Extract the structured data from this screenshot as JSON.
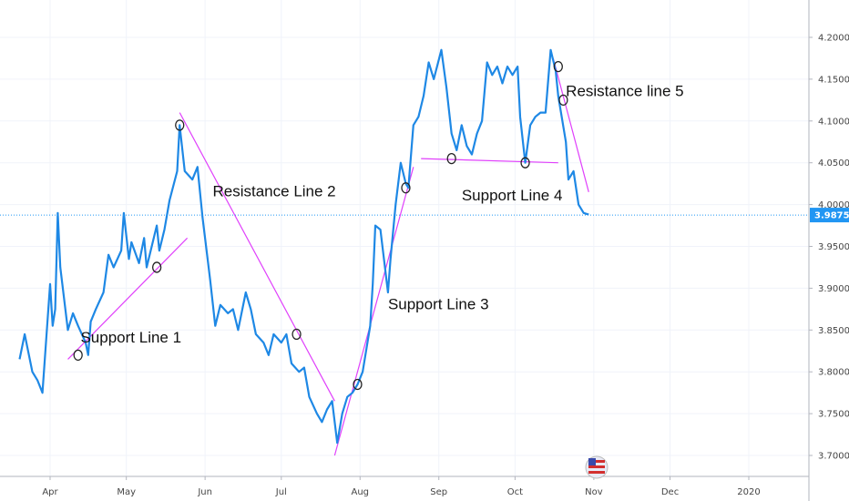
{
  "chart_data": {
    "type": "line",
    "xlim": [
      "2019-03-20",
      "2019-12-31"
    ],
    "ylim": [
      3.68,
      4.23
    ],
    "grid": true,
    "x_ticks": [
      {
        "label": "Apr",
        "date": "2019-04-01"
      },
      {
        "label": "May",
        "date": "2019-05-01"
      },
      {
        "label": "Jun",
        "date": "2019-06-01"
      },
      {
        "label": "Jul",
        "date": "2019-07-01"
      },
      {
        "label": "Aug",
        "date": "2019-08-01"
      },
      {
        "label": "Sep",
        "date": "2019-09-01"
      },
      {
        "label": "Oct",
        "date": "2019-10-01"
      },
      {
        "label": "Nov",
        "date": "2019-11-01"
      },
      {
        "label": "Dec",
        "date": "2019-12-01"
      },
      {
        "label": "2020",
        "date": "2020-01-01"
      }
    ],
    "y_ticks": [
      "3.7000",
      "3.7500",
      "3.8000",
      "3.8500",
      "3.9000",
      "3.9500",
      "4.0000",
      "4.0500",
      "4.1000",
      "4.1500",
      "4.2000"
    ],
    "current_price": {
      "label": "3.9875",
      "value": 3.9875,
      "color": "#2196f3"
    },
    "series": [
      {
        "color": "#1e88e5",
        "points": [
          [
            "2019-03-20",
            3.815
          ],
          [
            "2019-03-22",
            3.845
          ],
          [
            "2019-03-25",
            3.8
          ],
          [
            "2019-03-27",
            3.79
          ],
          [
            "2019-03-29",
            3.775
          ],
          [
            "2019-04-01",
            3.905
          ],
          [
            "2019-04-02",
            3.855
          ],
          [
            "2019-04-03",
            3.875
          ],
          [
            "2019-04-04",
            3.99
          ],
          [
            "2019-04-05",
            3.925
          ],
          [
            "2019-04-08",
            3.85
          ],
          [
            "2019-04-10",
            3.87
          ],
          [
            "2019-04-12",
            3.855
          ],
          [
            "2019-04-15",
            3.835
          ],
          [
            "2019-04-16",
            3.82
          ],
          [
            "2019-04-17",
            3.86
          ],
          [
            "2019-04-19",
            3.875
          ],
          [
            "2019-04-22",
            3.895
          ],
          [
            "2019-04-24",
            3.94
          ],
          [
            "2019-04-26",
            3.925
          ],
          [
            "2019-04-29",
            3.945
          ],
          [
            "2019-04-30",
            3.99
          ],
          [
            "2019-05-02",
            3.935
          ],
          [
            "2019-05-03",
            3.955
          ],
          [
            "2019-05-06",
            3.93
          ],
          [
            "2019-05-08",
            3.96
          ],
          [
            "2019-05-09",
            3.925
          ],
          [
            "2019-05-13",
            3.975
          ],
          [
            "2019-05-14",
            3.945
          ],
          [
            "2019-05-16",
            3.97
          ],
          [
            "2019-05-18",
            4.005
          ],
          [
            "2019-05-21",
            4.04
          ],
          [
            "2019-05-22",
            4.095
          ],
          [
            "2019-05-24",
            4.04
          ],
          [
            "2019-05-27",
            4.03
          ],
          [
            "2019-05-29",
            4.045
          ],
          [
            "2019-05-31",
            3.985
          ],
          [
            "2019-06-03",
            3.91
          ],
          [
            "2019-06-05",
            3.855
          ],
          [
            "2019-06-07",
            3.88
          ],
          [
            "2019-06-10",
            3.87
          ],
          [
            "2019-06-12",
            3.875
          ],
          [
            "2019-06-14",
            3.85
          ],
          [
            "2019-06-17",
            3.895
          ],
          [
            "2019-06-19",
            3.875
          ],
          [
            "2019-06-21",
            3.845
          ],
          [
            "2019-06-24",
            3.835
          ],
          [
            "2019-06-26",
            3.82
          ],
          [
            "2019-06-28",
            3.845
          ],
          [
            "2019-07-01",
            3.835
          ],
          [
            "2019-07-03",
            3.845
          ],
          [
            "2019-07-05",
            3.81
          ],
          [
            "2019-07-08",
            3.8
          ],
          [
            "2019-07-10",
            3.805
          ],
          [
            "2019-07-12",
            3.77
          ],
          [
            "2019-07-15",
            3.75
          ],
          [
            "2019-07-17",
            3.74
          ],
          [
            "2019-07-19",
            3.755
          ],
          [
            "2019-07-21",
            3.765
          ],
          [
            "2019-07-23",
            3.715
          ],
          [
            "2019-07-25",
            3.75
          ],
          [
            "2019-07-27",
            3.77
          ],
          [
            "2019-07-29",
            3.775
          ],
          [
            "2019-07-31",
            3.785
          ],
          [
            "2019-08-02",
            3.8
          ],
          [
            "2019-08-05",
            3.855
          ],
          [
            "2019-08-06",
            3.905
          ],
          [
            "2019-08-07",
            3.975
          ],
          [
            "2019-08-09",
            3.97
          ],
          [
            "2019-08-12",
            3.895
          ],
          [
            "2019-08-13",
            3.935
          ],
          [
            "2019-08-15",
            4.0
          ],
          [
            "2019-08-17",
            4.05
          ],
          [
            "2019-08-19",
            4.025
          ],
          [
            "2019-08-20",
            4.02
          ],
          [
            "2019-08-22",
            4.095
          ],
          [
            "2019-08-24",
            4.105
          ],
          [
            "2019-08-26",
            4.13
          ],
          [
            "2019-08-28",
            4.17
          ],
          [
            "2019-08-30",
            4.15
          ],
          [
            "2019-09-02",
            4.185
          ],
          [
            "2019-09-04",
            4.14
          ],
          [
            "2019-09-06",
            4.085
          ],
          [
            "2019-09-08",
            4.065
          ],
          [
            "2019-09-10",
            4.095
          ],
          [
            "2019-09-12",
            4.07
          ],
          [
            "2019-09-14",
            4.06
          ],
          [
            "2019-09-16",
            4.085
          ],
          [
            "2019-09-18",
            4.1
          ],
          [
            "2019-09-20",
            4.17
          ],
          [
            "2019-09-22",
            4.155
          ],
          [
            "2019-09-24",
            4.165
          ],
          [
            "2019-09-26",
            4.145
          ],
          [
            "2019-09-28",
            4.165
          ],
          [
            "2019-09-30",
            4.155
          ],
          [
            "2019-10-02",
            4.165
          ],
          [
            "2019-10-03",
            4.105
          ],
          [
            "2019-10-05",
            4.05
          ],
          [
            "2019-10-07",
            4.095
          ],
          [
            "2019-10-09",
            4.105
          ],
          [
            "2019-10-11",
            4.11
          ],
          [
            "2019-10-13",
            4.11
          ],
          [
            "2019-10-15",
            4.185
          ],
          [
            "2019-10-17",
            4.16
          ],
          [
            "2019-10-18",
            4.13
          ],
          [
            "2019-10-21",
            4.075
          ],
          [
            "2019-10-22",
            4.03
          ],
          [
            "2019-10-24",
            4.04
          ],
          [
            "2019-10-26",
            4.0
          ],
          [
            "2019-10-28",
            3.99
          ],
          [
            "2019-10-30",
            3.988
          ]
        ]
      }
    ],
    "trendlines": [
      {
        "name": "Support Line 1",
        "color": "#e040fb",
        "from": [
          "2019-04-08",
          3.815
        ],
        "to": [
          "2019-05-25",
          3.96
        ]
      },
      {
        "name": "Resistance Line 2",
        "color": "#e040fb",
        "from": [
          "2019-05-22",
          4.11
        ],
        "to": [
          "2019-07-22",
          3.765
        ]
      },
      {
        "name": "Support Line 3",
        "color": "#e040fb",
        "from": [
          "2019-07-22",
          3.7
        ],
        "to": [
          "2019-08-22",
          4.045
        ]
      },
      {
        "name": "Support Line 4",
        "color": "#e040fb",
        "from": [
          "2019-08-25",
          4.055
        ],
        "to": [
          "2019-10-18",
          4.05
        ]
      },
      {
        "name": "Resistance line 5",
        "color": "#e040fb",
        "from": [
          "2019-10-16",
          4.175
        ],
        "to": [
          "2019-10-30",
          4.015
        ]
      }
    ],
    "markers": [
      [
        "2019-04-12",
        3.82
      ],
      [
        "2019-05-13",
        3.925
      ],
      [
        "2019-05-22",
        4.095
      ],
      [
        "2019-07-07",
        3.845
      ],
      [
        "2019-07-31",
        3.785
      ],
      [
        "2019-08-19",
        4.02
      ],
      [
        "2019-09-06",
        4.055
      ],
      [
        "2019-10-05",
        4.05
      ],
      [
        "2019-10-18",
        4.165
      ],
      [
        "2019-10-20",
        4.125
      ]
    ],
    "annotations": [
      {
        "text": "Support Line 1",
        "date": "2019-04-13",
        "value": 3.835
      },
      {
        "text": "Resistance Line 2",
        "date": "2019-06-04",
        "value": 4.01
      },
      {
        "text": "Support Line 3",
        "date": "2019-08-12",
        "value": 3.875
      },
      {
        "text": "Support Line 4",
        "date": "2019-09-10",
        "value": 4.005
      },
      {
        "text": "Resistance line 5",
        "date": "2019-10-21",
        "value": 4.13
      }
    ]
  }
}
